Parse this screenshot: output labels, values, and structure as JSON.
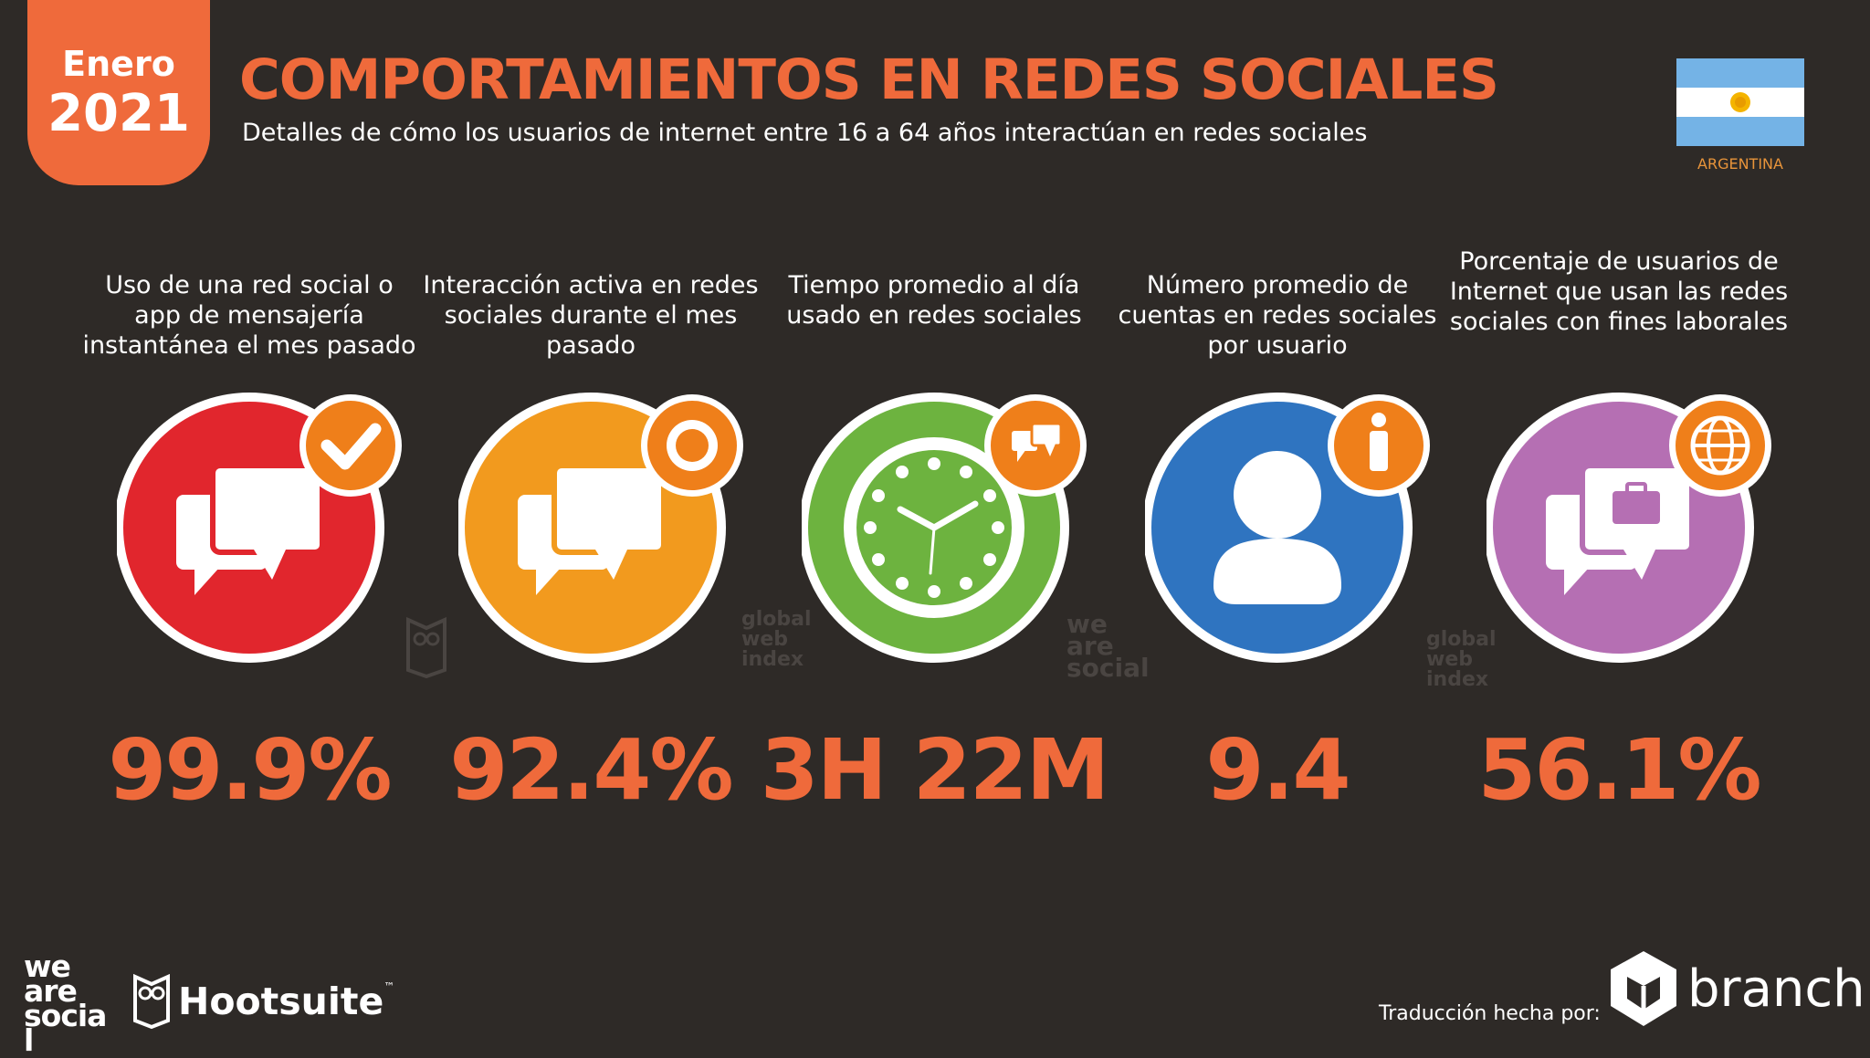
{
  "header": {
    "month": "Enero",
    "year": "2021",
    "title": "COMPORTAMIENTOS EN REDES SOCIALES",
    "subtitle": "Detalles de cómo los usuarios de internet entre 16 a 64 años interactúan en redes sociales",
    "country": "ARGENTINA"
  },
  "colors": {
    "background": "#2e2a27",
    "accent": "#ef6a3b",
    "red": "#e1262d",
    "orange": "#f29a1e",
    "green": "#6db33f",
    "blue": "#2f74c0",
    "purple": "#b56fb3"
  },
  "stats": [
    {
      "label": "Uso de una red social o app de mensajería instantánea el mes pasado",
      "value": "99.9%",
      "icon": "chat-bubbles-icon",
      "badge_icon": "checkmark-icon",
      "color": "#e1262d"
    },
    {
      "label": "Interacción activa en redes sociales durante el mes pasado",
      "value": "92.4%",
      "icon": "chat-bubbles-icon",
      "badge_icon": "speech-burst-icon",
      "color": "#f29a1e"
    },
    {
      "label": "Tiempo promedio al día usado en redes sociales",
      "value": "3H 22M",
      "icon": "clock-icon",
      "badge_icon": "chat-bubbles-icon",
      "color": "#6db33f"
    },
    {
      "label": "Número promedio de cuentas en redes sociales por usuario",
      "value": "9.4",
      "icon": "user-icon",
      "badge_icon": "person-icon",
      "color": "#2f74c0"
    },
    {
      "label": "Porcentaje de usuarios de Internet que usan las redes sociales con fines laborales",
      "value": "56.1%",
      "icon": "briefcase-chat-icon",
      "badge_icon": "globe-icon",
      "color": "#b56fb3"
    }
  ],
  "footer": {
    "logo_wearesocial": "we are social",
    "logo_hootsuite": "Hootsuite",
    "hootsuite_tm": "™",
    "credit": "Traducción hecha por:",
    "branch": "branch"
  }
}
